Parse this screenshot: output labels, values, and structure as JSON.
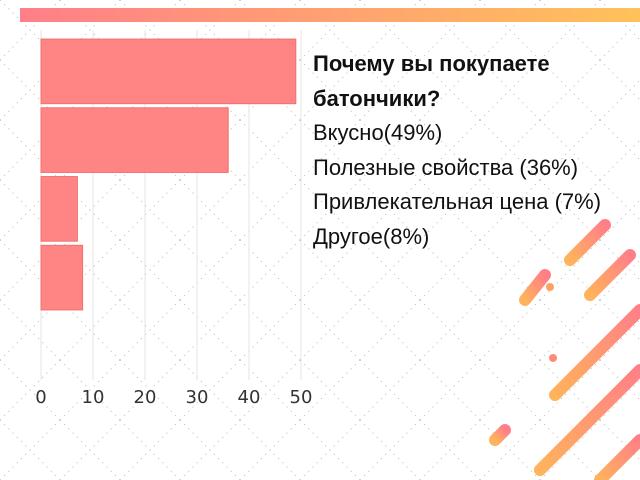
{
  "chart_data": {
    "type": "barh",
    "title": "Почему вы покупаете батончики?",
    "categories": [
      "Вкусно(49%)",
      "Полезные свойства (36%)",
      "Привлекательная цена (7%)",
      "Другое(8%)"
    ],
    "values": [
      49,
      36,
      7,
      8
    ],
    "color": "#ff8585",
    "xlim": [
      0,
      50
    ],
    "xticks": [
      0,
      10,
      20,
      30,
      40,
      50
    ],
    "grid": true
  }
}
